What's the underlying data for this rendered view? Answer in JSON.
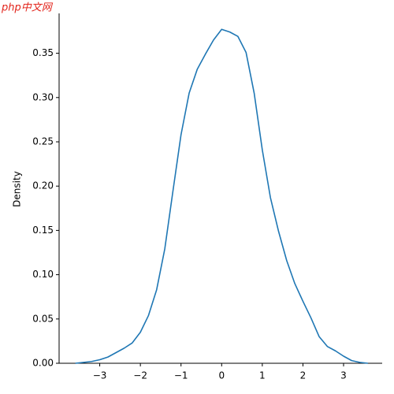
{
  "watermark": "php中文网",
  "chart_data": {
    "type": "line",
    "ylabel": "Density",
    "x": [
      -3.6,
      -3.2,
      -3.0,
      -2.8,
      -2.6,
      -2.4,
      -2.2,
      -2.0,
      -1.8,
      -1.6,
      -1.4,
      -1.2,
      -1.0,
      -0.8,
      -0.6,
      -0.4,
      -0.2,
      0,
      0.2,
      0.4,
      0.6,
      0.8,
      1.0,
      1.2,
      1.4,
      1.6,
      1.8,
      2.0,
      2.2,
      2.4,
      2.6,
      2.8,
      3.0,
      3.2,
      3.4,
      3.6
    ],
    "series": [
      {
        "color": "#1f77b4",
        "values": [
          0.0,
          0.002,
          0.004,
          0.007,
          0.012,
          0.017,
          0.023,
          0.035,
          0.054,
          0.083,
          0.129,
          0.194,
          0.258,
          0.305,
          0.332,
          0.349,
          0.365,
          0.377,
          0.374,
          0.369,
          0.351,
          0.305,
          0.241,
          0.187,
          0.149,
          0.116,
          0.09,
          0.07,
          0.051,
          0.03,
          0.019,
          0.014,
          0.008,
          0.003,
          0.001,
          0.0
        ]
      }
    ],
    "xlim": [
      -4.0,
      3.95
    ],
    "ylim": [
      0,
      0.395
    ],
    "xticks": [
      {
        "value": -3,
        "label": "−3"
      },
      {
        "value": -2,
        "label": "−2"
      },
      {
        "value": -1,
        "label": "−1"
      },
      0,
      1,
      2,
      3
    ],
    "yticks": [
      {
        "value": 0,
        "label": "0.00"
      },
      {
        "value": 0.05,
        "label": "0.05"
      },
      {
        "value": 0.1,
        "label": "0.10"
      },
      {
        "value": 0.15,
        "label": "0.15"
      },
      {
        "value": 0.2,
        "label": "0.20"
      },
      {
        "value": 0.25,
        "label": "0.25"
      },
      {
        "value": 0.3,
        "label": "0.30"
      },
      {
        "value": 0.35,
        "label": "0.35"
      }
    ],
    "grid": false
  }
}
